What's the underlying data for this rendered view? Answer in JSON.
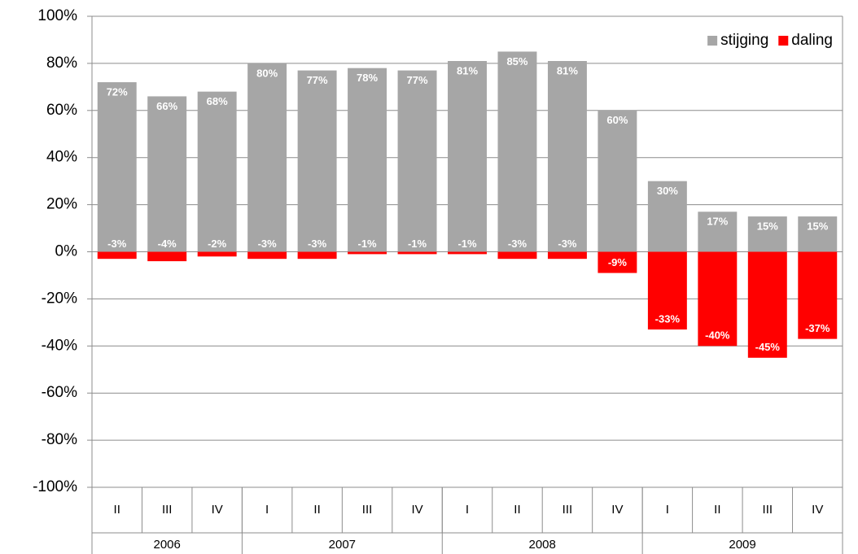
{
  "chart_data": {
    "type": "bar",
    "categories": [
      "II",
      "III",
      "IV",
      "I",
      "II",
      "III",
      "IV",
      "I",
      "II",
      "III",
      "IV",
      "I",
      "II",
      "III",
      "IV"
    ],
    "groups": [
      {
        "label": "2006",
        "count": 3
      },
      {
        "label": "2007",
        "count": 4
      },
      {
        "label": "2008",
        "count": 4
      },
      {
        "label": "2009",
        "count": 4
      }
    ],
    "series": [
      {
        "name": "stijging",
        "color": "#a6a6a6",
        "values": [
          72,
          66,
          68,
          80,
          77,
          78,
          77,
          81,
          85,
          81,
          60,
          30,
          17,
          15,
          15
        ],
        "value_labels": [
          "72%",
          "66%",
          "68%",
          "80%",
          "77%",
          "78%",
          "77%",
          "81%",
          "85%",
          "81%",
          "60%",
          "30%",
          "17%",
          "15%",
          "15%"
        ]
      },
      {
        "name": "daling",
        "color": "#ff0000",
        "values": [
          -3,
          -4,
          -2,
          -3,
          -3,
          -1,
          -1,
          -1,
          -3,
          -3,
          -9,
          -33,
          -40,
          -45,
          -37
        ],
        "value_labels": [
          "-3%",
          "-4%",
          "-2%",
          "-3%",
          "-3%",
          "-1%",
          "-1%",
          "-1%",
          "-3%",
          "-3%",
          "-9%",
          "-33%",
          "-40%",
          "-45%",
          "-37%"
        ]
      }
    ],
    "ylim": [
      -100,
      100
    ],
    "yticks": [
      {
        "value": -100,
        "label": "-100%"
      },
      {
        "value": -80,
        "label": "-80%"
      },
      {
        "value": -60,
        "label": "-60%"
      },
      {
        "value": -40,
        "label": "-40%"
      },
      {
        "value": -20,
        "label": "-20%"
      },
      {
        "value": 0,
        "label": "0%"
      },
      {
        "value": 20,
        "label": "20%"
      },
      {
        "value": 40,
        "label": "40%"
      },
      {
        "value": 60,
        "label": "60%"
      },
      {
        "value": 80,
        "label": "80%"
      },
      {
        "value": 100,
        "label": "100%"
      }
    ],
    "grid": true,
    "legend": "top-right"
  }
}
